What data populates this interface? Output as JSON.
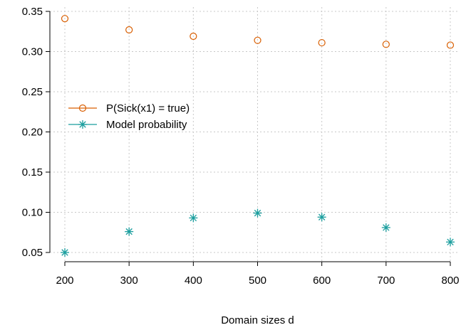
{
  "chart_data": {
    "type": "scatter",
    "x": [
      200,
      300,
      400,
      500,
      600,
      700,
      800
    ],
    "series": [
      {
        "name": "P(Sick(x1) = true)",
        "marker": "circle",
        "color": "#d95f02",
        "values": [
          0.341,
          0.327,
          0.319,
          0.314,
          0.311,
          0.309,
          0.308
        ]
      },
      {
        "name": "Model probability",
        "marker": "asterisk",
        "color": "#1b9e9e",
        "values": [
          0.05,
          0.076,
          0.093,
          0.099,
          0.094,
          0.081,
          0.063
        ]
      }
    ],
    "xlabel": "Domain sizes d",
    "ylabel": "",
    "xlim": [
      200,
      800
    ],
    "ylim": [
      0.05,
      0.35
    ],
    "xticks": [
      "200",
      "300",
      "400",
      "500",
      "600",
      "700",
      "800"
    ],
    "yticks": [
      "0.05",
      "0.10",
      "0.15",
      "0.20",
      "0.25",
      "0.30",
      "0.35"
    ],
    "grid": true,
    "legend_position": "left"
  }
}
